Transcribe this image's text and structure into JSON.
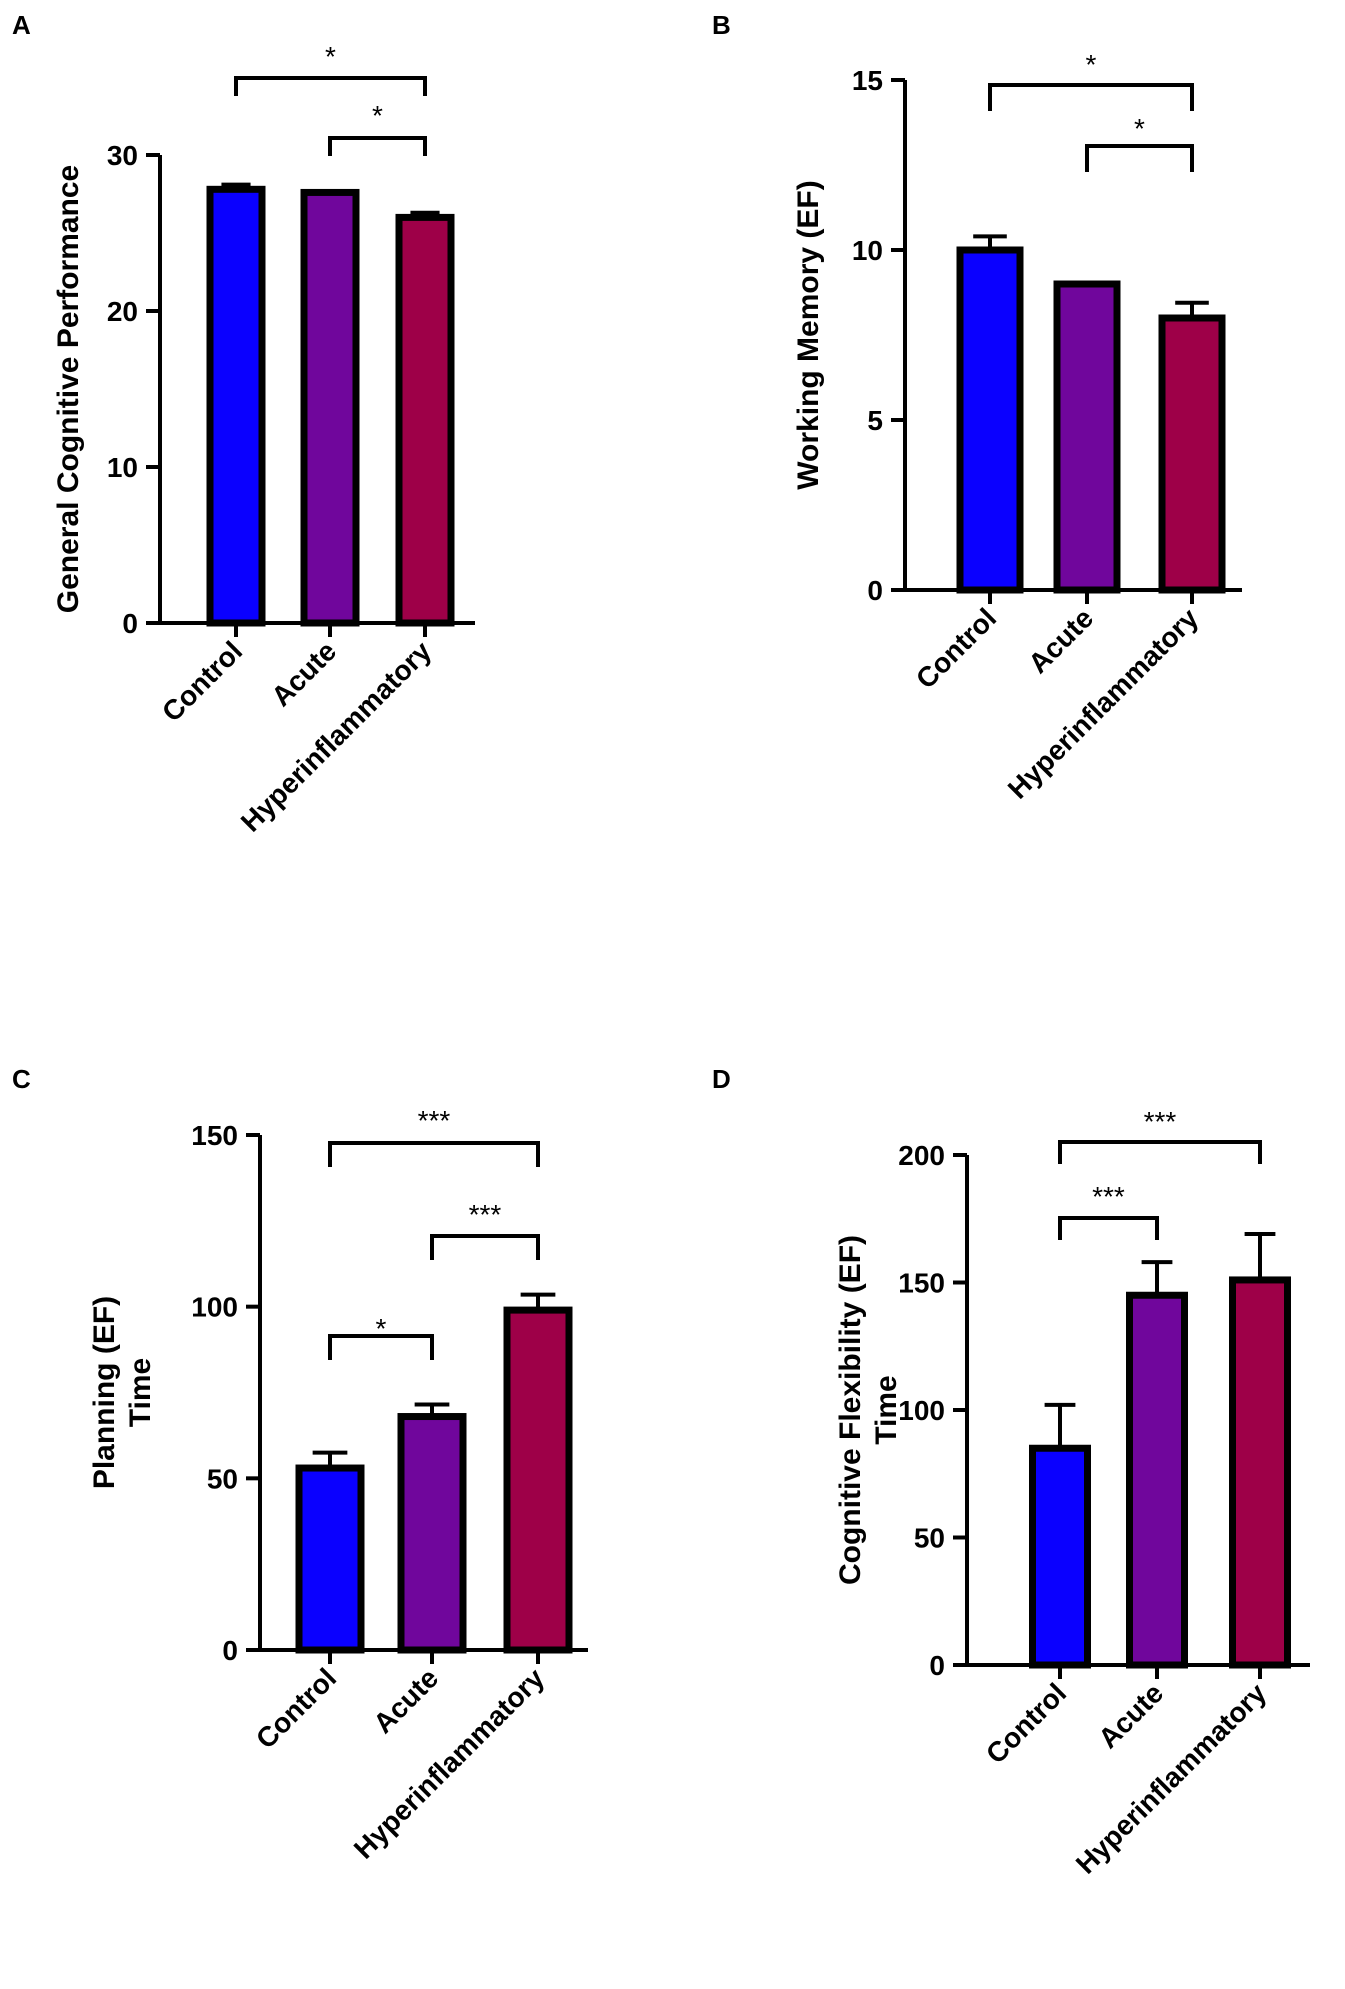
{
  "chart_data": [
    {
      "panel": "A",
      "type": "bar",
      "categories": [
        "Control",
        "Acute",
        "Hyperinflammatory"
      ],
      "values": [
        27.8,
        27.6,
        26.0
      ],
      "errors": [
        0.3,
        0.0,
        0.3
      ],
      "colors": [
        "#0a00ff",
        "#70069c",
        "#9e0048"
      ],
      "ylabel": [
        "General Cognitive Performance"
      ],
      "ylim": [
        0,
        30
      ],
      "yticks": [
        0,
        10,
        20,
        30
      ],
      "significance": [
        {
          "from": 0,
          "to": 2,
          "label": "*"
        },
        {
          "from": 1,
          "to": 2,
          "label": "*"
        }
      ]
    },
    {
      "panel": "B",
      "type": "bar",
      "categories": [
        "Control",
        "Acute",
        "Hyperinflammatory"
      ],
      "values": [
        10.0,
        9.0,
        8.0
      ],
      "errors": [
        0.4,
        0.0,
        0.45
      ],
      "colors": [
        "#0a00ff",
        "#70069c",
        "#9e0048"
      ],
      "ylabel": [
        "Working Memory (EF)"
      ],
      "ylim": [
        0,
        15
      ],
      "yticks": [
        0,
        5,
        10,
        15
      ],
      "significance": [
        {
          "from": 0,
          "to": 2,
          "label": "*"
        },
        {
          "from": 1,
          "to": 2,
          "label": "*"
        }
      ]
    },
    {
      "panel": "C",
      "type": "bar",
      "categories": [
        "Control",
        "Acute",
        "Hyperinflammatory"
      ],
      "values": [
        53,
        68,
        99
      ],
      "errors": [
        4.5,
        3.5,
        4.5
      ],
      "colors": [
        "#0a00ff",
        "#70069c",
        "#9e0048"
      ],
      "ylabel": [
        "Planning (EF)",
        "Time"
      ],
      "ylim": [
        0,
        150
      ],
      "yticks": [
        0,
        50,
        100,
        150
      ],
      "significance": [
        {
          "from": 0,
          "to": 2,
          "label": "***"
        },
        {
          "from": 1,
          "to": 2,
          "label": "***"
        },
        {
          "from": 0,
          "to": 1,
          "label": "*"
        }
      ]
    },
    {
      "panel": "D",
      "type": "bar",
      "categories": [
        "Control",
        "Acute",
        "Hyperinflammatory"
      ],
      "values": [
        85,
        145,
        151
      ],
      "errors": [
        17,
        13,
        18
      ],
      "colors": [
        "#0a00ff",
        "#70069c",
        "#9e0048"
      ],
      "ylabel": [
        "Cognitive Flexibility (EF)",
        "Time"
      ],
      "ylim": [
        0,
        200
      ],
      "yticks": [
        0,
        50,
        100,
        150,
        200
      ],
      "significance": [
        {
          "from": 0,
          "to": 2,
          "label": "***"
        },
        {
          "from": 0,
          "to": 1,
          "label": "***"
        }
      ]
    }
  ]
}
